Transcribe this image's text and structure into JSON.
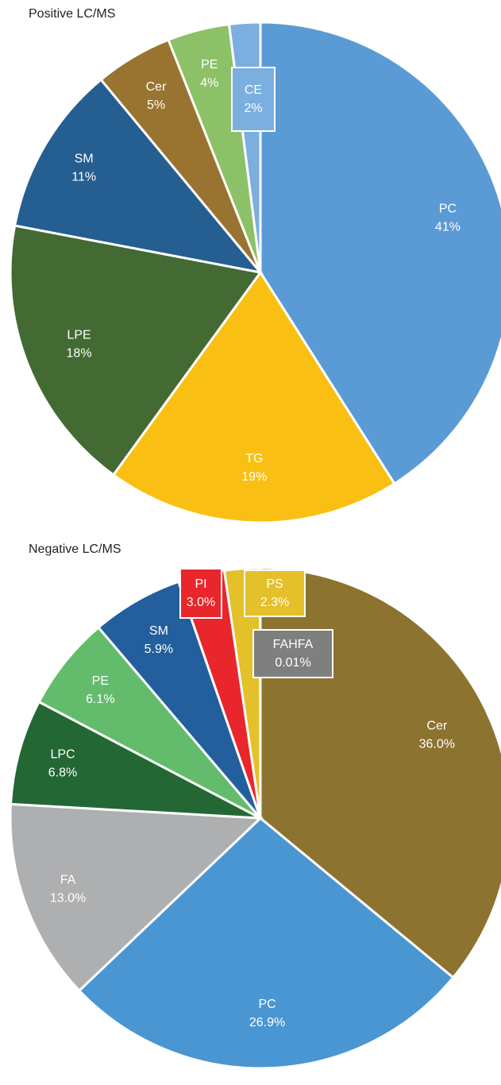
{
  "chart_data": [
    {
      "type": "pie",
      "title": "Positive LC/MS",
      "categories": [
        "PC",
        "TG",
        "LPE",
        "SM",
        "Cer",
        "PE",
        "CE"
      ],
      "values": [
        41,
        19,
        18,
        11,
        5,
        4,
        2
      ],
      "value_labels": [
        "41%",
        "19%",
        "18%",
        "11%",
        "5%",
        "4%",
        "2%"
      ],
      "colors": [
        "#5b9bd5",
        "#f9c013",
        "#436a32",
        "#255e91",
        "#987430",
        "#8cc168",
        "#7aafe0"
      ]
    },
    {
      "type": "pie",
      "title": "Negative LC/MS",
      "categories": [
        "Cer",
        "PC",
        "FA",
        "LPC",
        "PE",
        "SM",
        "PI",
        "PS",
        "FAHFA"
      ],
      "values": [
        36.0,
        26.9,
        13.0,
        6.8,
        6.1,
        5.9,
        3.0,
        2.3,
        0.01
      ],
      "value_labels": [
        "36.0%",
        "26.9%",
        "13.0%",
        "6.8%",
        "6.1%",
        "5.9%",
        "3.0%",
        "2.3%",
        "0.01%"
      ],
      "colors": [
        "#8c732f",
        "#4a96d2",
        "#aeafb1",
        "#236834",
        "#63bc6c",
        "#235f9c",
        "#e9262b",
        "#e4c02a",
        "#7f7f7f"
      ]
    }
  ]
}
